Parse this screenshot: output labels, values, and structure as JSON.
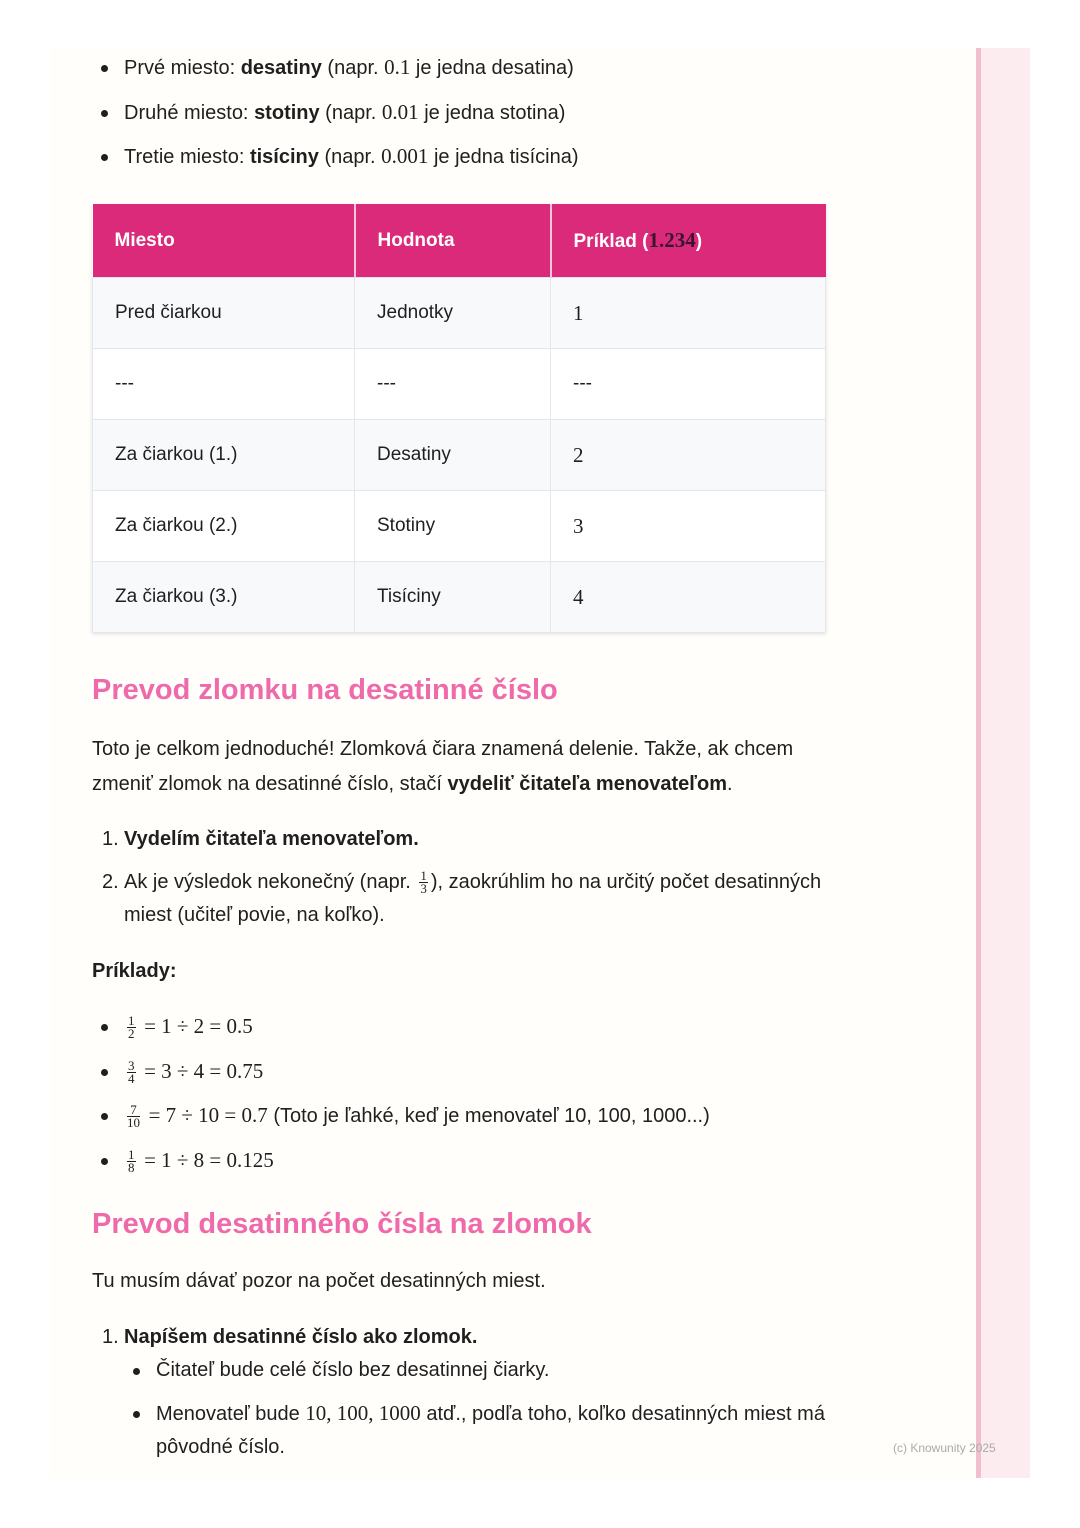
{
  "intro_list": [
    {
      "pre": "Prvé miesto: ",
      "bold": "desatiny",
      "mid": " (napr. ",
      "math": "0.1",
      "post": " je jedna desatina)"
    },
    {
      "pre": "Druhé miesto: ",
      "bold": "stotiny",
      "mid": " (napr. ",
      "math": "0.01",
      "post": " je jedna stotina)"
    },
    {
      "pre": "Tretie miesto: ",
      "bold": "tisíciny",
      "mid": " (napr. ",
      "math": "0.001",
      "post": " je jedna tisícina)"
    }
  ],
  "table": {
    "headers": [
      "Miesto",
      "Hodnota",
      "Príklad ("
    ],
    "header_math": "1.234",
    "header_close": ")",
    "rows": [
      [
        "Pred čiarkou",
        "Jednotky",
        "1"
      ],
      [
        "---",
        "---",
        "---"
      ],
      [
        "Za čiarkou (1.)",
        "Desatiny",
        "2"
      ],
      [
        "Za čiarkou (2.)",
        "Stotiny",
        "3"
      ],
      [
        "Za čiarkou (3.)",
        "Tisíciny",
        "4"
      ]
    ],
    "header_color": "#da2a79"
  },
  "section1": {
    "title": "Prevod zlomku na desatinné číslo",
    "para_pre": "Toto je celkom jednoduché! Zlomková čiara znamená delenie. Takže, ak chcem zmeniť zlomok na desatinné číslo, stačí ",
    "para_bold": "vydeliť čitateľa menovateľom",
    "para_post": ".",
    "steps": [
      {
        "n": "1.",
        "bold": "Vydelím čitateľa menovateľom."
      },
      {
        "n": "2.",
        "pre": "Ak je výsledok nekonečný (napr. ",
        "num": "1",
        "den": "3",
        "post": "), zaokrúhlim ho na určitý počet desatinných miest (učiteľ povie, na koľko)."
      }
    ],
    "examples_label": "Príklady:",
    "examples": [
      {
        "num": "1",
        "den": "2",
        "expr": "= 1 ÷ 2 = 0.5",
        "note": ""
      },
      {
        "num": "3",
        "den": "4",
        "expr": "= 3 ÷ 4 = 0.75",
        "note": ""
      },
      {
        "num": "7",
        "den": "10",
        "expr": "= 7 ÷ 10 = 0.7",
        "note": " (Toto je ľahké, keď je menovateľ 10, 100, 1000...)"
      },
      {
        "num": "1",
        "den": "8",
        "expr": "= 1 ÷ 8 = 0.125",
        "note": ""
      }
    ]
  },
  "section2": {
    "title": "Prevod desatinného čísla na zlomok",
    "para": "Tu musím dávať pozor na počet desatinných miest.",
    "step1_n": "1.",
    "step1": "Napíšem desatinné číslo ako zlomok.",
    "sub1": "Čitateľ bude celé číslo bez desatinnej čiarky.",
    "sub2_pre": "Menovateľ bude ",
    "sub2_math": "10, 100, 1000",
    "sub2_post": " atď., podľa toho, koľko desatinných miest má pôvodné číslo."
  },
  "footer": {
    "copyright": "(c) Knowunity 2025"
  },
  "colors": {
    "heading": "#ef6aaa",
    "accent": "#da2a79"
  }
}
